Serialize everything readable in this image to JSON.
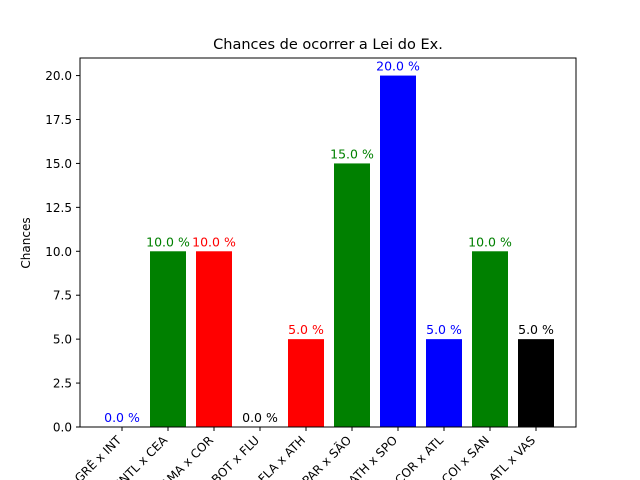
{
  "chart_data": {
    "type": "bar",
    "title": "Chances de ocorrer a Lei do Ex.",
    "xlabel": "",
    "ylabel": "Chances",
    "ylim": [
      0,
      21
    ],
    "yticks": [
      "0.0",
      "2.5",
      "5.0",
      "7.5",
      "10.0",
      "12.5",
      "15.0",
      "17.5",
      "20.0"
    ],
    "categories": [
      "GRÊ x INT",
      "INTL x CEA",
      "CAMA x COR",
      "BOT x FLU",
      "FLA x ATH",
      "PAR x SÃO",
      "ATH x SPO",
      "COR x ATL",
      "COI x SAN",
      "ATL x VAS"
    ],
    "values": [
      0.0,
      10.0,
      10.0,
      0.0,
      5.0,
      15.0,
      20.0,
      5.0,
      10.0,
      5.0
    ],
    "data_labels": [
      "0.0 %",
      "10.0 %",
      "10.0 %",
      "0.0 %",
      "5.0 %",
      "15.0 %",
      "20.0 %",
      "5.0 %",
      "10.0 %",
      "5.0 %"
    ],
    "colors": [
      "#0000ff",
      "#008000",
      "#ff0000",
      "#000000",
      "#ff0000",
      "#008000",
      "#0000ff",
      "#0000ff",
      "#008000",
      "#000000"
    ],
    "grid": false
  }
}
